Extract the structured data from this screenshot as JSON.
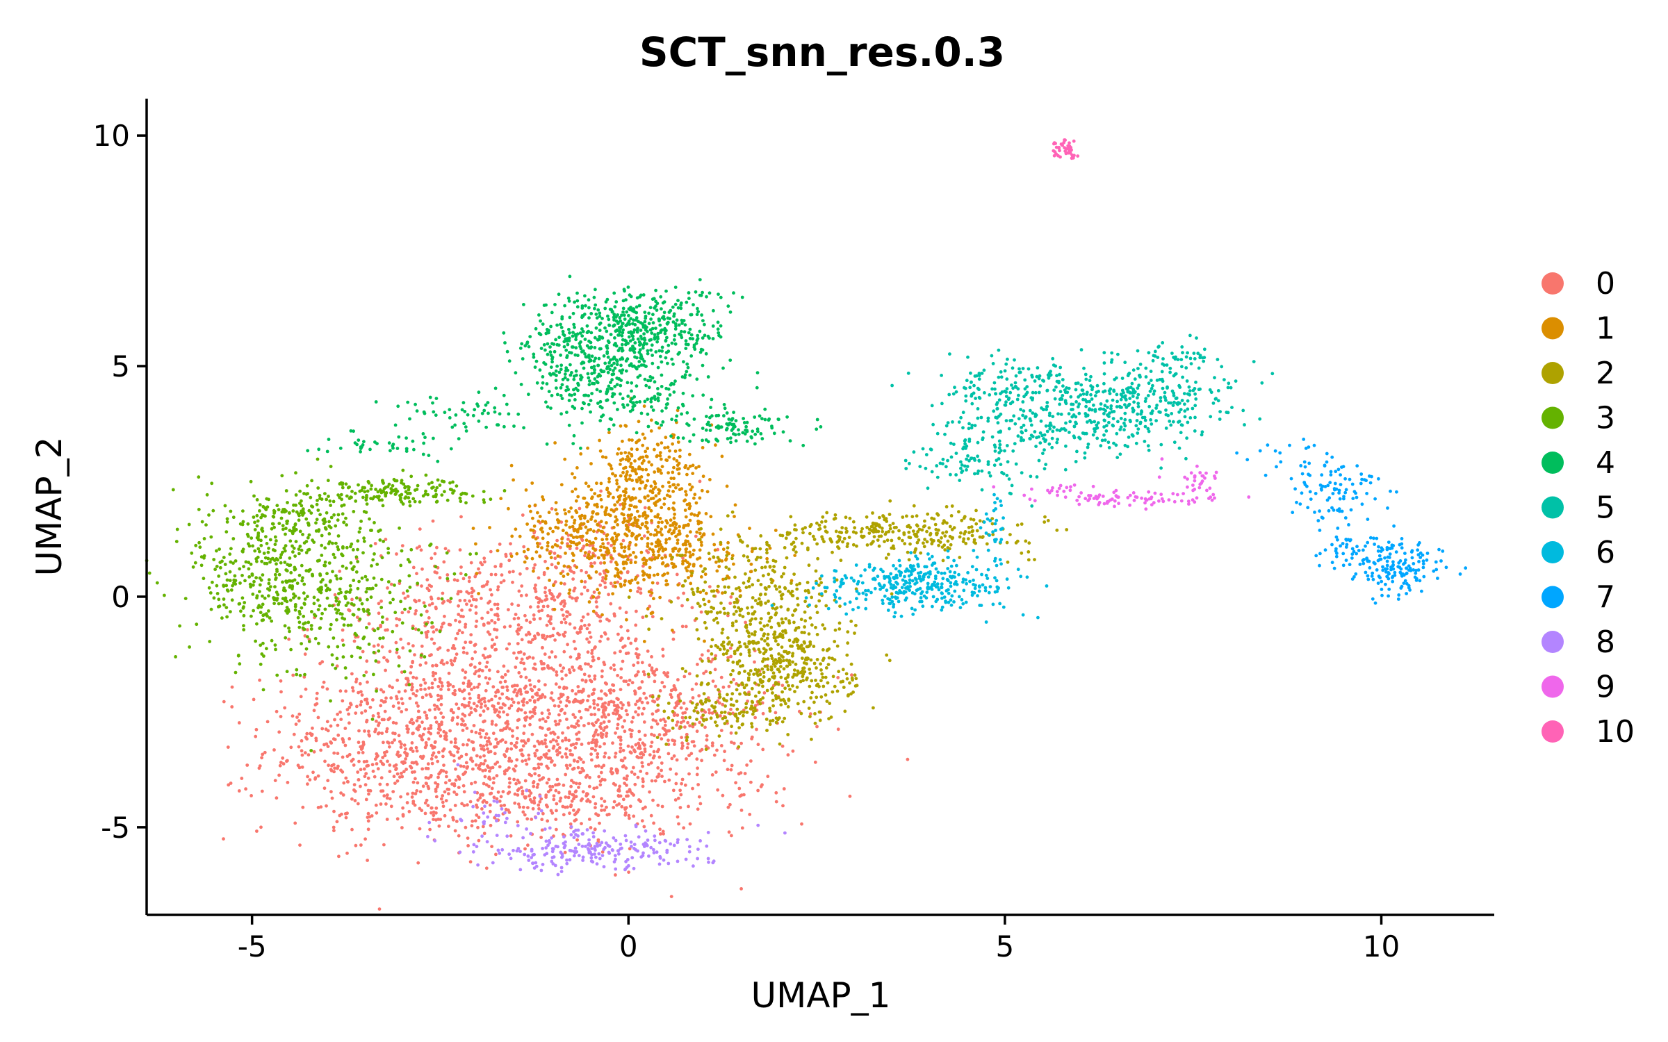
{
  "chart_data": {
    "type": "scatter",
    "title": "SCT_snn_res.0.3",
    "xlabel": "UMAP_1",
    "ylabel": "UMAP_2",
    "xlim": [
      -6.4,
      11.5
    ],
    "ylim": [
      -6.9,
      10.8
    ],
    "xticks": [
      -5,
      0,
      5,
      10
    ],
    "xtick_labels": [
      "-5",
      "0",
      "5",
      "10"
    ],
    "yticks": [
      -5,
      0,
      5,
      10
    ],
    "ytick_labels": [
      "-5",
      "0",
      "5",
      "10"
    ],
    "grid": false,
    "legend_position": "right",
    "legend": [
      {
        "label": "0",
        "color": "#F8766D"
      },
      {
        "label": "1",
        "color": "#DB8E00"
      },
      {
        "label": "2",
        "color": "#AEA200"
      },
      {
        "label": "3",
        "color": "#64B200"
      },
      {
        "label": "4",
        "color": "#00BD5C"
      },
      {
        "label": "5",
        "color": "#00C1A7"
      },
      {
        "label": "6",
        "color": "#00BADE"
      },
      {
        "label": "7",
        "color": "#00A6FF"
      },
      {
        "label": "8",
        "color": "#B385FF"
      },
      {
        "label": "9",
        "color": "#EF67EB"
      },
      {
        "label": "10",
        "color": "#FF63B6"
      }
    ],
    "clusters": [
      {
        "name": "0",
        "color": "#F8766D",
        "blobs": [
          {
            "cx": -2.8,
            "cy": -3.3,
            "sx": 1.0,
            "sy": 0.9,
            "n": 650
          },
          {
            "cx": -1.2,
            "cy": -2.3,
            "sx": 1.3,
            "sy": 1.4,
            "n": 850
          },
          {
            "cx": 0.2,
            "cy": -2.8,
            "sx": 0.9,
            "sy": 0.9,
            "n": 450
          },
          {
            "cx": -2.2,
            "cy": -0.5,
            "sx": 0.9,
            "sy": 0.9,
            "n": 300
          },
          {
            "cx": -1.0,
            "cy": -4.4,
            "sx": 1.3,
            "sy": 0.4,
            "n": 250
          },
          {
            "cx": -0.6,
            "cy": 0.5,
            "sx": 0.8,
            "sy": 0.7,
            "n": 200
          }
        ]
      },
      {
        "name": "1",
        "color": "#DB8E00",
        "blobs": [
          {
            "cx": 0.1,
            "cy": 1.6,
            "sx": 0.55,
            "sy": 0.75,
            "n": 500
          },
          {
            "cx": 0.3,
            "cy": 2.8,
            "sx": 0.3,
            "sy": 0.5,
            "n": 120
          },
          {
            "cx": -0.8,
            "cy": 1.3,
            "sx": 0.5,
            "sy": 0.5,
            "n": 150
          },
          {
            "cx": 0.9,
            "cy": 0.8,
            "sx": 0.5,
            "sy": 0.4,
            "n": 120
          }
        ]
      },
      {
        "name": "2",
        "color": "#AEA200",
        "blobs": [
          {
            "cx": 2.1,
            "cy": -1.6,
            "sx": 0.45,
            "sy": 0.6,
            "n": 350
          },
          {
            "cx": 1.7,
            "cy": -0.2,
            "sx": 0.55,
            "sy": 0.75,
            "n": 300
          },
          {
            "cx": 3.6,
            "cy": 1.4,
            "sx": 0.9,
            "sy": 0.22,
            "n": 300
          },
          {
            "cx": 1.2,
            "cy": -2.5,
            "sx": 0.4,
            "sy": 0.3,
            "n": 100
          }
        ]
      },
      {
        "name": "3",
        "color": "#64B200",
        "blobs": [
          {
            "cx": -4.8,
            "cy": 0.5,
            "sx": 0.5,
            "sy": 0.9,
            "n": 350
          },
          {
            "cx": -3.8,
            "cy": 0.2,
            "sx": 0.6,
            "sy": 1.0,
            "n": 300
          },
          {
            "cx": -3.1,
            "cy": 2.3,
            "sx": 0.55,
            "sy": 0.15,
            "n": 150
          },
          {
            "cx": -4.4,
            "cy": 1.7,
            "sx": 0.4,
            "sy": 0.35,
            "n": 100
          }
        ]
      },
      {
        "name": "4",
        "color": "#00BD5C",
        "blobs": [
          {
            "cx": 0.1,
            "cy": 5.8,
            "sx": 0.6,
            "sy": 0.45,
            "n": 450
          },
          {
            "cx": -0.2,
            "cy": 4.6,
            "sx": 0.6,
            "sy": 0.5,
            "n": 300
          },
          {
            "cx": 1.4,
            "cy": 3.7,
            "sx": 0.35,
            "sy": 0.2,
            "n": 100
          },
          {
            "cx": -2.2,
            "cy": 4.0,
            "sx": 0.5,
            "sy": 0.2,
            "n": 50
          },
          {
            "cx": -3.2,
            "cy": 3.3,
            "sx": 0.4,
            "sy": 0.15,
            "n": 40
          },
          {
            "cx": -1.1,
            "cy": 5.3,
            "sx": 0.3,
            "sy": 0.3,
            "n": 50
          }
        ]
      },
      {
        "name": "5",
        "color": "#00C1A7",
        "blobs": [
          {
            "cx": 5.8,
            "cy": 3.8,
            "sx": 0.8,
            "sy": 0.45,
            "n": 350
          },
          {
            "cx": 7.0,
            "cy": 4.4,
            "sx": 0.5,
            "sy": 0.4,
            "n": 200
          },
          {
            "cx": 5.2,
            "cy": 4.7,
            "sx": 0.6,
            "sy": 0.25,
            "n": 100
          },
          {
            "cx": 4.6,
            "cy": 2.9,
            "sx": 0.4,
            "sy": 0.3,
            "n": 80
          },
          {
            "cx": 7.3,
            "cy": 5.2,
            "sx": 0.3,
            "sy": 0.15,
            "n": 40
          }
        ]
      },
      {
        "name": "6",
        "color": "#00BADE",
        "blobs": [
          {
            "cx": 4.1,
            "cy": 0.3,
            "sx": 0.55,
            "sy": 0.3,
            "n": 250
          },
          {
            "cx": 3.2,
            "cy": 0.2,
            "sx": 0.4,
            "sy": 0.25,
            "n": 80
          },
          {
            "cx": 4.9,
            "cy": 1.5,
            "sx": 0.1,
            "sy": 0.4,
            "n": 30
          }
        ]
      },
      {
        "name": "7",
        "color": "#00A6FF",
        "blobs": [
          {
            "cx": 10.2,
            "cy": 0.6,
            "sx": 0.3,
            "sy": 0.3,
            "n": 150
          },
          {
            "cx": 9.4,
            "cy": 2.3,
            "sx": 0.3,
            "sy": 0.45,
            "n": 100
          },
          {
            "cx": 9.6,
            "cy": 1.0,
            "sx": 0.3,
            "sy": 0.2,
            "n": 40
          },
          {
            "cx": 8.6,
            "cy": 3.0,
            "sx": 0.3,
            "sy": 0.2,
            "n": 15
          }
        ]
      },
      {
        "name": "8",
        "color": "#B385FF",
        "blobs": [
          {
            "cx": -0.5,
            "cy": -5.5,
            "sx": 0.8,
            "sy": 0.22,
            "n": 220
          },
          {
            "cx": -1.8,
            "cy": -4.8,
            "sx": 0.4,
            "sy": 0.3,
            "n": 30
          }
        ]
      },
      {
        "name": "9",
        "color": "#EF67EB",
        "blobs": [
          {
            "cx": 6.7,
            "cy": 2.1,
            "sx": 0.5,
            "sy": 0.08,
            "n": 70
          },
          {
            "cx": 7.6,
            "cy": 2.5,
            "sx": 0.2,
            "sy": 0.2,
            "n": 30
          },
          {
            "cx": 5.8,
            "cy": 2.3,
            "sx": 0.3,
            "sy": 0.08,
            "n": 20
          }
        ]
      },
      {
        "name": "10",
        "color": "#FF63B6",
        "blobs": [
          {
            "cx": 5.8,
            "cy": 9.7,
            "sx": 0.1,
            "sy": 0.1,
            "n": 40
          }
        ]
      }
    ]
  }
}
